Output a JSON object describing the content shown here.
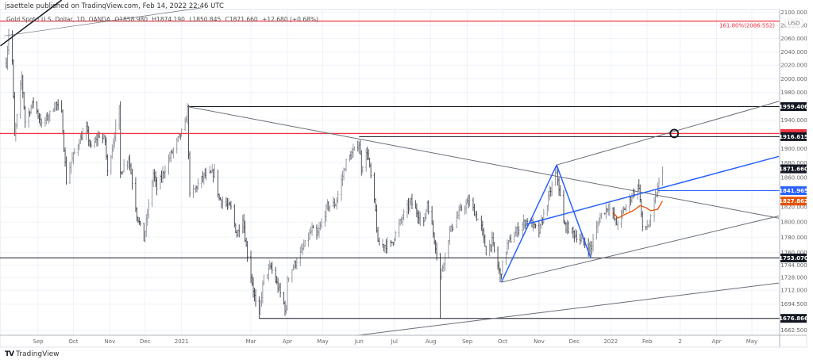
{
  "publisher": "jsaettele published on TradingView.com, Feb 14, 2022 22:46 UTC",
  "legend": {
    "symbol": "Gold Spot / U.S. Dollar, 1D, OANDA",
    "open": "O1858.980",
    "high": "H1874.190",
    "low": "L1850.845",
    "close": "C1871.660",
    "change": "+12.680 (+0.68%)"
  },
  "brand": {
    "name": "TradingView",
    "logo": "TV"
  },
  "colors": {
    "bars": "#555555",
    "red": "#f23645",
    "blue": "#2962ff",
    "orange": "#e65100",
    "black": "#131722",
    "grid": "#eef2f8"
  },
  "chart_data": {
    "type": "ohlc",
    "scale": "log",
    "ylim": [
      1662.5,
      2100
    ],
    "currency": "USD",
    "grid": true,
    "price_ticks": [
      "2100.000",
      "2080.000",
      "2060.000",
      "2040.000",
      "2020.000",
      "2000.000",
      "1980.000",
      "1940.000",
      "1900.000",
      "1880.000",
      "1860.000",
      "1820.000",
      "1800.000",
      "1780.000",
      "1760.000",
      "1744.000",
      "1728.000",
      "1712.000",
      "1694.500",
      "1662.500"
    ],
    "time_ticks": [
      {
        "date": "2020-09-01",
        "label": "Sep"
      },
      {
        "date": "2020-10-01",
        "label": "Oct"
      },
      {
        "date": "2020-11-01",
        "label": "Nov"
      },
      {
        "date": "2020-12-01",
        "label": "Dec"
      },
      {
        "date": "2021-01-01",
        "label": "2021"
      },
      {
        "date": "2021-03-01",
        "label": "Mar"
      },
      {
        "date": "2021-04-01",
        "label": "Apr"
      },
      {
        "date": "2021-05-01",
        "label": "May"
      },
      {
        "date": "2021-06-01",
        "label": "Jun"
      },
      {
        "date": "2021-07-01",
        "label": "Jul"
      },
      {
        "date": "2021-08-01",
        "label": "Aug"
      },
      {
        "date": "2021-09-01",
        "label": "Sep"
      },
      {
        "date": "2021-10-01",
        "label": "Oct"
      },
      {
        "date": "2021-11-01",
        "label": "Nov"
      },
      {
        "date": "2021-12-01",
        "label": "Dec"
      },
      {
        "date": "2022-01-01",
        "label": "2022"
      },
      {
        "date": "2022-02-01",
        "label": "Feb"
      },
      {
        "date": "2022-03-01",
        "label": "2"
      },
      {
        "date": "2022-04-01",
        "label": "Apr"
      },
      {
        "date": "2022-05-01",
        "label": "May"
      }
    ],
    "price_path": [
      [
        "2020-08-05",
        2023
      ],
      [
        "2020-08-07",
        2068
      ],
      [
        "2020-08-10",
        2026
      ],
      [
        "2020-08-12",
        1916
      ],
      [
        "2020-08-18",
        2002
      ],
      [
        "2020-08-21",
        1938
      ],
      [
        "2020-08-28",
        1967
      ],
      [
        "2020-09-04",
        1933
      ],
      [
        "2020-09-11",
        1949
      ],
      [
        "2020-09-16",
        1964
      ],
      [
        "2020-09-21",
        1949
      ],
      [
        "2020-09-25",
        1855
      ],
      [
        "2020-09-29",
        1881
      ],
      [
        "2020-10-06",
        1911
      ],
      [
        "2020-10-12",
        1927
      ],
      [
        "2020-10-16",
        1900
      ],
      [
        "2020-10-23",
        1919
      ],
      [
        "2020-10-28",
        1911
      ],
      [
        "2020-10-30",
        1866
      ],
      [
        "2020-11-09",
        1956
      ],
      [
        "2020-11-10",
        1866
      ],
      [
        "2020-11-17",
        1888
      ],
      [
        "2020-11-24",
        1810
      ],
      [
        "2020-11-30",
        1777
      ],
      [
        "2020-12-08",
        1866
      ],
      [
        "2020-12-11",
        1845
      ],
      [
        "2020-12-22",
        1888
      ],
      [
        "2021-01-04",
        1933
      ],
      [
        "2021-01-06",
        1956
      ],
      [
        "2021-01-08",
        1834
      ],
      [
        "2021-01-20",
        1862
      ],
      [
        "2021-01-29",
        1866
      ],
      [
        "2021-02-02",
        1831
      ],
      [
        "2021-02-12",
        1818
      ],
      [
        "2021-02-17",
        1783
      ],
      [
        "2021-02-22",
        1807
      ],
      [
        "2021-02-25",
        1767
      ],
      [
        "2021-03-05",
        1695
      ],
      [
        "2021-03-08",
        1684
      ],
      [
        "2021-03-12",
        1728
      ],
      [
        "2021-03-18",
        1741
      ],
      [
        "2021-03-29",
        1695
      ],
      [
        "2021-03-31",
        1684
      ],
      [
        "2021-04-01",
        1728
      ],
      [
        "2021-04-13",
        1761
      ],
      [
        "2021-04-22",
        1790
      ],
      [
        "2021-04-26",
        1780
      ],
      [
        "2021-05-05",
        1821
      ],
      [
        "2021-05-12",
        1824
      ],
      [
        "2021-05-21",
        1881
      ],
      [
        "2021-06-01",
        1907
      ],
      [
        "2021-06-03",
        1873
      ],
      [
        "2021-06-08",
        1896
      ],
      [
        "2021-06-15",
        1814
      ],
      [
        "2021-06-17",
        1770
      ],
      [
        "2021-06-28",
        1770
      ],
      [
        "2021-07-09",
        1810
      ],
      [
        "2021-07-15",
        1827
      ],
      [
        "2021-07-26",
        1797
      ],
      [
        "2021-07-29",
        1827
      ],
      [
        "2021-08-06",
        1761
      ],
      [
        "2021-08-09",
        1728
      ],
      [
        "2021-08-17",
        1787
      ],
      [
        "2021-08-27",
        1818
      ],
      [
        "2021-09-03",
        1827
      ],
      [
        "2021-09-13",
        1793
      ],
      [
        "2021-09-17",
        1761
      ],
      [
        "2021-09-22",
        1775
      ],
      [
        "2021-09-29",
        1730
      ],
      [
        "2021-10-05",
        1770
      ],
      [
        "2021-10-14",
        1790
      ],
      [
        "2021-10-22",
        1803
      ],
      [
        "2021-11-01",
        1787
      ],
      [
        "2021-11-16",
        1870
      ],
      [
        "2021-11-22",
        1797
      ],
      [
        "2021-12-06",
        1777
      ],
      [
        "2021-12-15",
        1765
      ],
      [
        "2021-12-23",
        1808
      ],
      [
        "2021-12-30",
        1821
      ],
      [
        "2022-01-06",
        1797
      ],
      [
        "2022-01-20",
        1839
      ],
      [
        "2022-01-25",
        1849
      ],
      [
        "2022-01-28",
        1790
      ],
      [
        "2022-02-03",
        1797
      ],
      [
        "2022-02-10",
        1845
      ],
      [
        "2022-02-14",
        1871.66
      ]
    ],
    "notable_extremes": [
      {
        "date": "2020-08-07",
        "high": 2075
      },
      {
        "date": "2021-03-08",
        "low": 1676.866
      },
      {
        "date": "2021-08-09",
        "low": 1676.866
      },
      {
        "date": "2021-09-29",
        "low": 1722
      },
      {
        "date": "2021-11-16",
        "high": 1877
      },
      {
        "date": "2021-12-15",
        "low": 1753.07
      }
    ],
    "horizontal_lines": [
      {
        "price": 2086.552,
        "color": "red",
        "label": "161.80%(2086.552)"
      },
      {
        "price": 1959.406,
        "color": "black",
        "from": "2021-01-06",
        "label": "1959.406"
      },
      {
        "price": 1921,
        "color": "red"
      },
      {
        "price": 1916.615,
        "color": "black",
        "from": "2021-06-01",
        "label": "1916.615"
      },
      {
        "price": 1841.965,
        "color": "blue",
        "from": "2022-02-10",
        "label": "1841.965"
      },
      {
        "price": 1753.07,
        "color": "black",
        "label": "1753.070"
      },
      {
        "price": 1676.866,
        "color": "black",
        "from": "2021-03-08",
        "label": "1676.866"
      }
    ],
    "last_price": {
      "price": 1871.66,
      "label": "1871.660"
    },
    "orange_level": {
      "price": 1827.862,
      "label": "1827.862"
    },
    "trend_lines": [
      {
        "color": "black",
        "width": 1.5,
        "points": [
          [
            "2020-07-31",
            2049
          ],
          [
            "2020-09-21",
            2119
          ]
        ]
      },
      {
        "color": "gray",
        "width": 0.7,
        "points": [
          [
            "2020-08-03",
            2064
          ],
          [
            "2021-01-18",
            2107
          ]
        ]
      },
      {
        "color": "gray",
        "width": 1,
        "points": [
          [
            "2021-01-06",
            1959.4
          ],
          [
            "2022-05-24",
            1805
          ]
        ]
      },
      {
        "color": "gray",
        "width": 1,
        "points": [
          [
            "2021-09-30",
            1722
          ],
          [
            "2022-05-24",
            1808
          ]
        ]
      },
      {
        "color": "gray",
        "width": 1,
        "points": [
          [
            "2021-11-16",
            1877
          ],
          [
            "2022-05-24",
            1967
          ]
        ]
      },
      {
        "color": "gray",
        "width": 1,
        "points": [
          [
            "2021-05-30",
            1656
          ],
          [
            "2022-05-24",
            1721
          ]
        ]
      },
      {
        "color": "blue",
        "width": 1.5,
        "points": [
          [
            "2021-09-30",
            1722
          ],
          [
            "2021-11-16",
            1877
          ],
          [
            "2021-12-15",
            1753
          ]
        ]
      },
      {
        "color": "blue",
        "width": 1.5,
        "points": [
          [
            "2021-10-21",
            1797
          ],
          [
            "2022-05-24",
            1889
          ]
        ]
      },
      {
        "color": "orange",
        "width": 1.3,
        "points": [
          [
            "2022-01-03",
            1813
          ],
          [
            "2022-01-07",
            1805
          ],
          [
            "2022-01-13",
            1810
          ],
          [
            "2022-01-20",
            1815
          ],
          [
            "2022-01-26",
            1822
          ],
          [
            "2022-01-31",
            1819
          ],
          [
            "2022-02-04",
            1815
          ],
          [
            "2022-02-10",
            1817
          ],
          [
            "2022-02-14",
            1828
          ]
        ]
      }
    ],
    "circle_marker": {
      "date": "2022-02-24",
      "price": 1921
    }
  }
}
